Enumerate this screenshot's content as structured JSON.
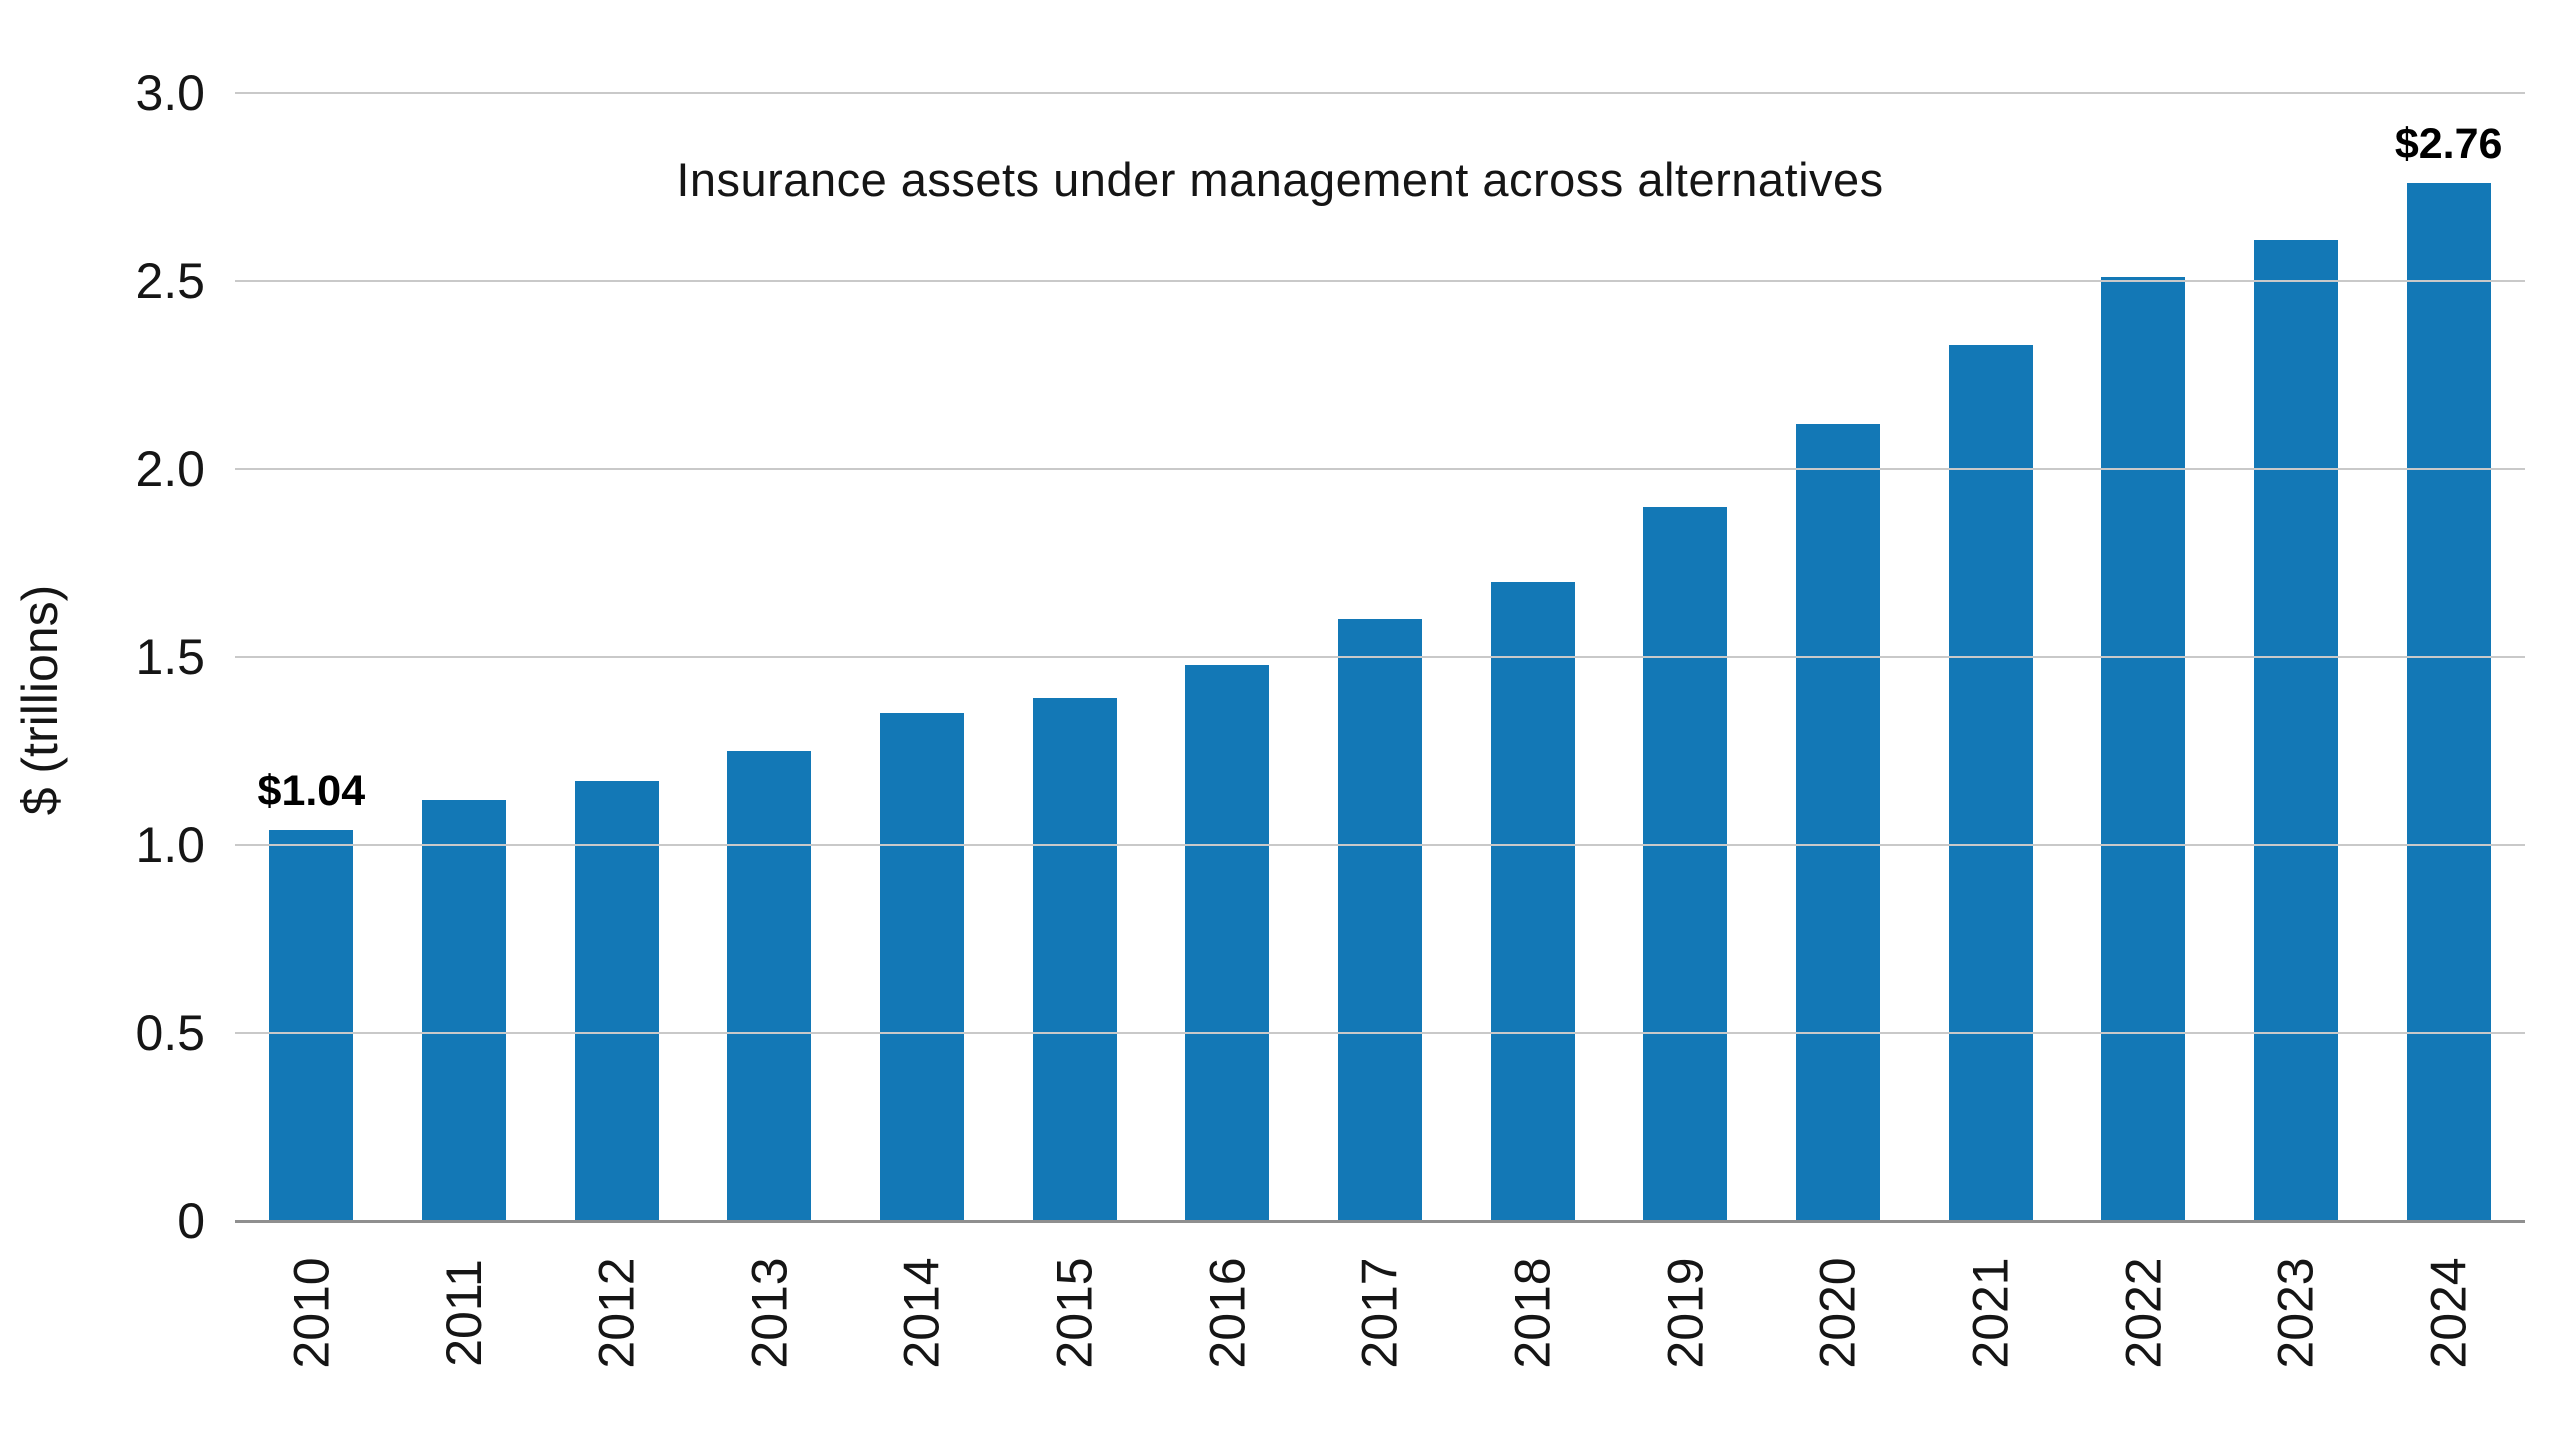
{
  "chart_data": {
    "type": "bar",
    "title": "Insurance assets under management across alternatives",
    "xlabel": "",
    "ylabel": "$ (trillions)",
    "categories": [
      "2010",
      "2011",
      "2012",
      "2013",
      "2014",
      "2015",
      "2016",
      "2017",
      "2018",
      "2019",
      "2020",
      "2021",
      "2022",
      "2023",
      "2024"
    ],
    "values": [
      1.04,
      1.12,
      1.17,
      1.25,
      1.35,
      1.39,
      1.48,
      1.6,
      1.7,
      1.9,
      2.12,
      2.33,
      2.51,
      2.61,
      2.76
    ],
    "ylim": [
      0,
      3.0
    ],
    "yticks": [
      0,
      0.5,
      1.0,
      1.5,
      2.0,
      2.5,
      3.0
    ],
    "ytick_labels": [
      "0",
      "0.5",
      "1.0",
      "1.5",
      "2.0",
      "2.5",
      "3.0"
    ],
    "grid": true,
    "legend": "none",
    "bar_color": "#1378b6",
    "gridline_color": "#c9c9c9",
    "axis_line_color": "#8f8f8f",
    "value_labels": [
      {
        "index": 0,
        "text": "$1.04"
      },
      {
        "index": 14,
        "text": "$2.76"
      }
    ]
  }
}
